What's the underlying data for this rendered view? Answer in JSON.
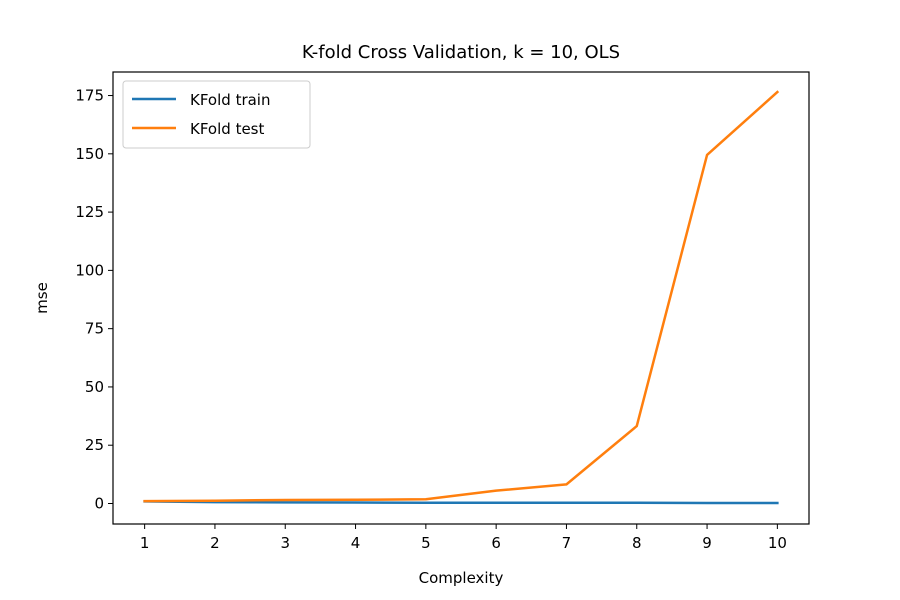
{
  "chart_data": {
    "type": "line",
    "title": "K-fold Cross Validation, k = 10, OLS",
    "xlabel": "Complexity",
    "ylabel": "mse",
    "x": [
      1,
      2,
      3,
      4,
      5,
      6,
      7,
      8,
      9,
      10
    ],
    "xticks": [
      1,
      2,
      3,
      4,
      5,
      6,
      7,
      8,
      9,
      10
    ],
    "yticks": [
      0,
      25,
      50,
      75,
      100,
      125,
      150,
      175
    ],
    "xlim": [
      0.55,
      10.45
    ],
    "ylim": [
      -8.8,
      185.1
    ],
    "grid": false,
    "legend_position": "top-left",
    "series": [
      {
        "name": "KFold train",
        "color": "#1f77b4",
        "values": [
          0.9,
          0.6,
          0.5,
          0.4,
          0.3,
          0.3,
          0.3,
          0.3,
          0.2,
          0.2
        ]
      },
      {
        "name": "KFold test",
        "color": "#ff7f0e",
        "values": [
          1.0,
          1.2,
          1.5,
          1.6,
          1.8,
          5.5,
          8.2,
          33.2,
          149.5,
          176.5
        ]
      }
    ]
  }
}
